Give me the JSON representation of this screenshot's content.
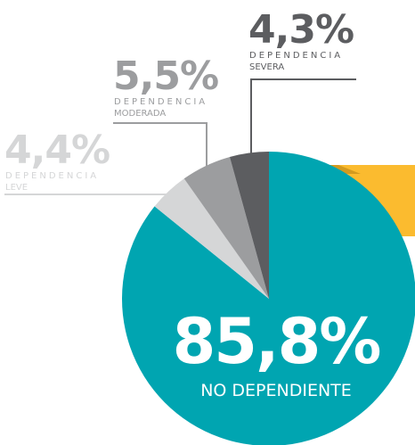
{
  "chart_data": {
    "type": "pie",
    "category_prefix": "DEPENDENCIA",
    "categories": [
      "NO DEPENDIENTE",
      "LEVE",
      "MODERADA",
      "SEVERA"
    ],
    "values": [
      85.8,
      4.4,
      5.5,
      4.3
    ],
    "value_labels": [
      "85,8%",
      "4,4%",
      "5,5%",
      "4,3%"
    ],
    "colors": [
      "#00a5b1",
      "#d5d6d7",
      "#9c9d9f",
      "#5c5d60"
    ]
  }
}
